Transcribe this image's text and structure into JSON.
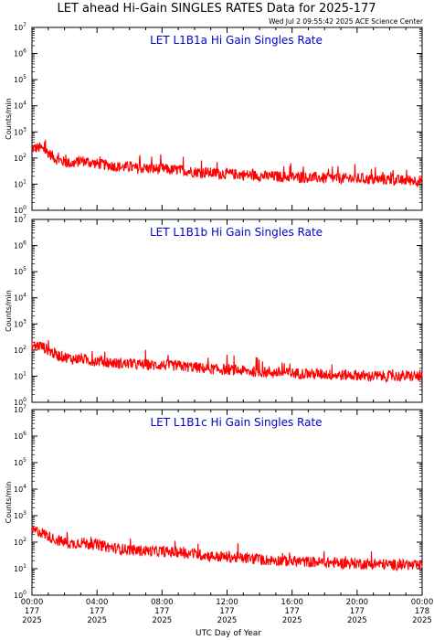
{
  "header": {
    "title": "LET ahead Hi-Gain SINGLES RATES Data for 2025-177",
    "timestamp": "Wed Jul  2 09:55:42 2025 ACE Science Center"
  },
  "colors": {
    "trace": "#ff0000",
    "panel_label": "#0000cc",
    "axes": "#000000"
  },
  "x_axis": {
    "label": "UTC Day of Year",
    "ticks": [
      {
        "time": "00:00",
        "day": "177",
        "year": "2025"
      },
      {
        "time": "04:00",
        "day": "177",
        "year": "2025"
      },
      {
        "time": "08:00",
        "day": "177",
        "year": "2025"
      },
      {
        "time": "12:00",
        "day": "177",
        "year": "2025"
      },
      {
        "time": "16:00",
        "day": "177",
        "year": "2025"
      },
      {
        "time": "20:00",
        "day": "177",
        "year": "2025"
      },
      {
        "time": "00:00",
        "day": "178",
        "year": "2025"
      }
    ]
  },
  "y_tick_labels": [
    {
      "base": "10",
      "exp": "0"
    },
    {
      "base": "10",
      "exp": "1"
    },
    {
      "base": "10",
      "exp": "2"
    },
    {
      "base": "10",
      "exp": "3"
    },
    {
      "base": "10",
      "exp": "4"
    },
    {
      "base": "10",
      "exp": "5"
    },
    {
      "base": "10",
      "exp": "6"
    },
    {
      "base": "10",
      "exp": "7"
    }
  ],
  "chart_data": [
    {
      "type": "line",
      "panel_label": "LET L1B1a Hi Gain Singles Rate",
      "ylabel": "Counts/min",
      "yscale": "log",
      "ylim": [
        1,
        10000000
      ],
      "xlim_hours": [
        0,
        24
      ],
      "series": [
        {
          "x_hours": [
            0,
            0.5,
            1,
            1.5,
            2,
            2.5,
            3,
            3.5,
            4,
            4.5,
            5,
            5.5,
            6,
            6.5,
            7,
            7.5,
            8,
            8.5,
            9,
            9.5,
            10,
            10.5,
            11,
            11.5,
            12,
            12.5,
            13,
            13.5,
            14,
            14.5,
            15,
            15.5,
            16,
            16.5,
            17,
            17.5,
            18,
            18.5,
            19,
            19.5,
            20,
            20.5,
            21,
            21.5,
            22,
            22.5,
            23,
            23.5,
            24
          ],
          "values": [
            230,
            250,
            160,
            90,
            70,
            60,
            80,
            70,
            60,
            55,
            50,
            45,
            45,
            40,
            42,
            38,
            40,
            35,
            35,
            32,
            30,
            28,
            27,
            25,
            25,
            24,
            23,
            22,
            21,
            20,
            20,
            19,
            19,
            18,
            18,
            18,
            17,
            17,
            17,
            16,
            16,
            16,
            15,
            15,
            15,
            14,
            14,
            14,
            13
          ]
        }
      ]
    },
    {
      "type": "line",
      "panel_label": "LET L1B1b Hi Gain Singles Rate",
      "ylabel": "Counts/min",
      "yscale": "log",
      "ylim": [
        1,
        10000000
      ],
      "xlim_hours": [
        0,
        24
      ],
      "series": [
        {
          "x_hours": [
            0,
            0.5,
            1,
            1.5,
            2,
            2.5,
            3,
            3.5,
            4,
            4.5,
            5,
            5.5,
            6,
            6.5,
            7,
            7.5,
            8,
            8.5,
            9,
            9.5,
            10,
            10.5,
            11,
            11.5,
            12,
            12.5,
            13,
            13.5,
            14,
            14.5,
            15,
            15.5,
            16,
            16.5,
            17,
            17.5,
            18,
            18.5,
            19,
            19.5,
            20,
            20.5,
            21,
            21.5,
            22,
            22.5,
            23,
            23.5,
            24
          ],
          "values": [
            140,
            150,
            100,
            65,
            55,
            45,
            48,
            40,
            38,
            35,
            32,
            30,
            30,
            28,
            28,
            26,
            27,
            25,
            25,
            23,
            22,
            20,
            19,
            18,
            18,
            17,
            16,
            15,
            15,
            14,
            14,
            13,
            13,
            13,
            12,
            12,
            12,
            11,
            11,
            11,
            11,
            10,
            10,
            10,
            10,
            10,
            10,
            10,
            10
          ]
        }
      ]
    },
    {
      "type": "line",
      "panel_label": "LET L1B1c Hi Gain Singles Rate",
      "ylabel": "Counts/min",
      "yscale": "log",
      "ylim": [
        1,
        10000000
      ],
      "xlim_hours": [
        0,
        24
      ],
      "series": [
        {
          "x_hours": [
            0,
            0.5,
            1,
            1.5,
            2,
            2.5,
            3,
            3.5,
            4,
            4.5,
            5,
            5.5,
            6,
            6.5,
            7,
            7.5,
            8,
            8.5,
            9,
            9.5,
            10,
            10.5,
            11,
            11.5,
            12,
            12.5,
            13,
            13.5,
            14,
            14.5,
            15,
            15.5,
            16,
            16.5,
            17,
            17.5,
            18,
            18.5,
            19,
            19.5,
            20,
            20.5,
            21,
            21.5,
            22,
            22.5,
            23,
            23.5,
            24
          ],
          "values": [
            270,
            250,
            170,
            120,
            100,
            85,
            100,
            85,
            80,
            70,
            60,
            55,
            52,
            48,
            48,
            45,
            45,
            42,
            42,
            38,
            36,
            33,
            30,
            28,
            28,
            26,
            25,
            24,
            22,
            21,
            21,
            20,
            19,
            19,
            18,
            18,
            17,
            17,
            16,
            16,
            16,
            15,
            15,
            15,
            14,
            14,
            14,
            13,
            13
          ]
        }
      ]
    }
  ]
}
